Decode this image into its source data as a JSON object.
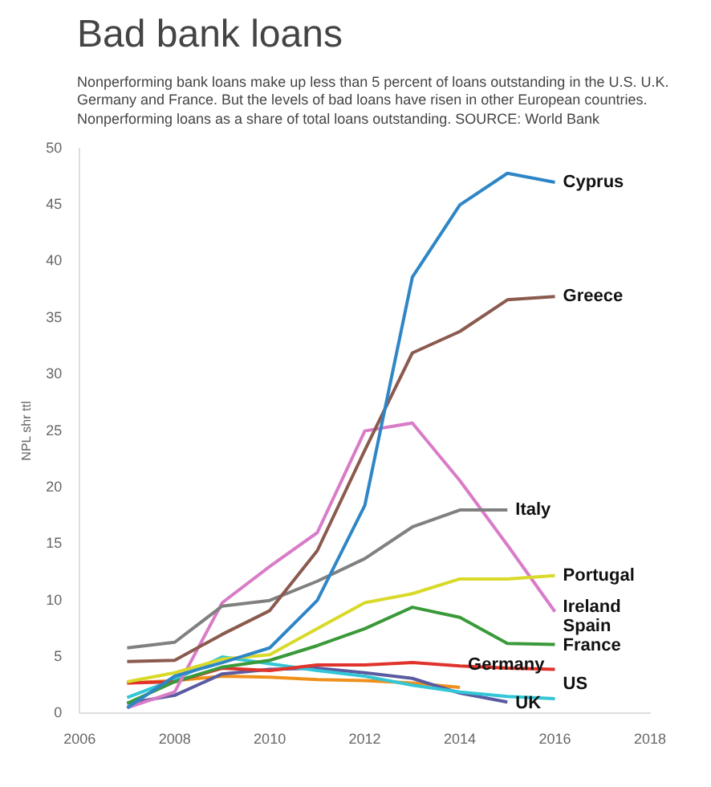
{
  "chart_data": {
    "type": "line",
    "title": "Bad bank loans",
    "subtitle": "Nonperforming bank loans make up less than 5 percent of loans outstanding in the U.S. U.K. Germany and France. But the levels of bad loans have risen in other European countries. Nonperforming loans as a share of total loans outstanding. SOURCE: World Bank",
    "ylabel": "NPL shr ttl",
    "xlim": [
      2006,
      2018
    ],
    "xticks": [
      2006,
      2008,
      2010,
      2012,
      2014,
      2016,
      2018
    ],
    "ylim": [
      0,
      50
    ],
    "yticks": [
      0,
      5,
      10,
      15,
      20,
      25,
      30,
      35,
      40,
      45,
      50
    ],
    "grid": false,
    "legend": false,
    "marker": "none",
    "series": [
      {
        "name": "Cyprus",
        "color": "#2f86c6",
        "x": [
          2007,
          2008,
          2009,
          2010,
          2011,
          2012,
          2013,
          2014,
          2015,
          2016
        ],
        "values": [
          0.5,
          3.3,
          4.5,
          5.8,
          10,
          18.4,
          38.6,
          45,
          47.8,
          47
        ]
      },
      {
        "name": "Greece",
        "color": "#8b5a4e",
        "x": [
          2007,
          2008,
          2009,
          2010,
          2011,
          2012,
          2013,
          2014,
          2015,
          2016
        ],
        "values": [
          4.6,
          4.7,
          7,
          9.1,
          14.4,
          23.3,
          31.9,
          33.8,
          36.6,
          36.9
        ]
      },
      {
        "name": "Italy",
        "color": "#808080",
        "x": [
          2007,
          2008,
          2009,
          2010,
          2011,
          2012,
          2013,
          2014,
          2015
        ],
        "values": [
          5.8,
          6.3,
          9.5,
          10,
          11.7,
          13.7,
          16.5,
          18,
          18
        ]
      },
      {
        "name": "Portugal",
        "color": "#d9d92a",
        "x": [
          2007,
          2008,
          2009,
          2010,
          2011,
          2012,
          2013,
          2014,
          2015,
          2016
        ],
        "values": [
          2.8,
          3.6,
          4.8,
          5.2,
          7.5,
          9.8,
          10.6,
          11.9,
          11.9,
          12.2
        ]
      },
      {
        "name": "Ireland",
        "color": "#d97cc8",
        "x": [
          2007,
          2008,
          2009,
          2010,
          2011,
          2012,
          2013,
          2014,
          2015,
          2016
        ],
        "values": [
          0.5,
          1.9,
          9.8,
          13,
          16,
          25,
          25.7,
          20.6,
          14.9,
          9
        ]
      },
      {
        "name": "Spain",
        "color": "#3a9a3a",
        "x": [
          2007,
          2008,
          2009,
          2010,
          2011,
          2012,
          2013,
          2014,
          2015,
          2016
        ],
        "values": [
          0.9,
          2.8,
          4.1,
          4.7,
          6,
          7.5,
          9.4,
          8.5,
          6.2,
          6.1
        ]
      },
      {
        "name": "France",
        "color": "#e0332b",
        "x": [
          2007,
          2008,
          2009,
          2010,
          2011,
          2012,
          2013,
          2014,
          2015,
          2016
        ],
        "values": [
          2.7,
          2.8,
          4,
          3.8,
          4.3,
          4.3,
          4.5,
          4.2,
          4,
          3.9
        ]
      },
      {
        "name": "US",
        "color": "#33c6d6",
        "x": [
          2007,
          2008,
          2009,
          2010,
          2011,
          2012,
          2013,
          2014,
          2015,
          2016
        ],
        "values": [
          1.4,
          3,
          5,
          4.4,
          3.8,
          3.3,
          2.5,
          1.9,
          1.5,
          1.3
        ]
      },
      {
        "name": "UK",
        "color": "#5a5aa0",
        "x": [
          2007,
          2008,
          2009,
          2010,
          2011,
          2012,
          2013,
          2014,
          2015
        ],
        "values": [
          0.9,
          1.6,
          3.5,
          3.9,
          4,
          3.6,
          3.1,
          1.8,
          1
        ]
      },
      {
        "name": "Germany",
        "color": "#f0901a",
        "x": [
          2007,
          2008,
          2009,
          2010,
          2011,
          2012,
          2013,
          2014
        ],
        "values": [
          2.7,
          2.9,
          3.3,
          3.2,
          3,
          2.9,
          2.7,
          2.3
        ]
      }
    ]
  }
}
